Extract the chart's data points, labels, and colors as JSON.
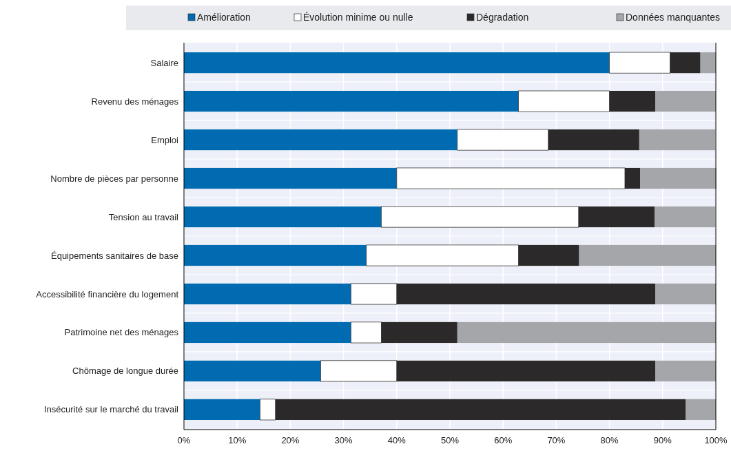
{
  "chart_data": {
    "type": "bar",
    "orientation": "horizontal",
    "stacked": true,
    "categories": [
      "Salaire",
      "Revenu des ménages",
      "Emploi",
      "Nombre de pièces par personne",
      "Tension au travail",
      "Équipements sanitaires de base",
      "Accessibilité financière du logement",
      "Patrimoine net des ménages",
      "Chômage de longue durée",
      "Insécurité sur le marché du travail"
    ],
    "series": [
      {
        "name": "Amélioration",
        "color": "#006bb0",
        "values": [
          80,
          62.9,
          51.4,
          40,
          37.1,
          34.3,
          31.4,
          31.4,
          25.7,
          14.3
        ]
      },
      {
        "name": "Évolution minime ou nulle",
        "color": "#ffffff",
        "values": [
          11.4,
          17.1,
          17.1,
          42.9,
          37.1,
          28.6,
          8.6,
          5.7,
          14.3,
          2.9
        ]
      },
      {
        "name": "Dégradation",
        "color": "#2b292a",
        "values": [
          5.7,
          8.6,
          17.1,
          2.9,
          14.3,
          11.4,
          48.6,
          14.3,
          48.6,
          77.1
        ]
      },
      {
        "name": "Données manquantes",
        "color": "#a5a6a9",
        "values": [
          2.9,
          11.4,
          14.3,
          14.3,
          11.4,
          25.7,
          11.4,
          48.6,
          11.4,
          5.7
        ]
      }
    ],
    "xlim": [
      0,
      100
    ],
    "xticks": [
      {
        "value": 0,
        "label": "0%"
      },
      {
        "value": 10,
        "label": "10%"
      },
      {
        "value": 20,
        "label": "20%"
      },
      {
        "value": 30,
        "label": "30%"
      },
      {
        "value": 40,
        "label": "40%"
      },
      {
        "value": 50,
        "label": "50%"
      },
      {
        "value": 60,
        "label": "60%"
      },
      {
        "value": 70,
        "label": "70%"
      },
      {
        "value": 80,
        "label": "80%"
      },
      {
        "value": 90,
        "label": "90%"
      },
      {
        "value": 100,
        "label": "100%"
      }
    ],
    "grid": "x",
    "legend": "top"
  }
}
